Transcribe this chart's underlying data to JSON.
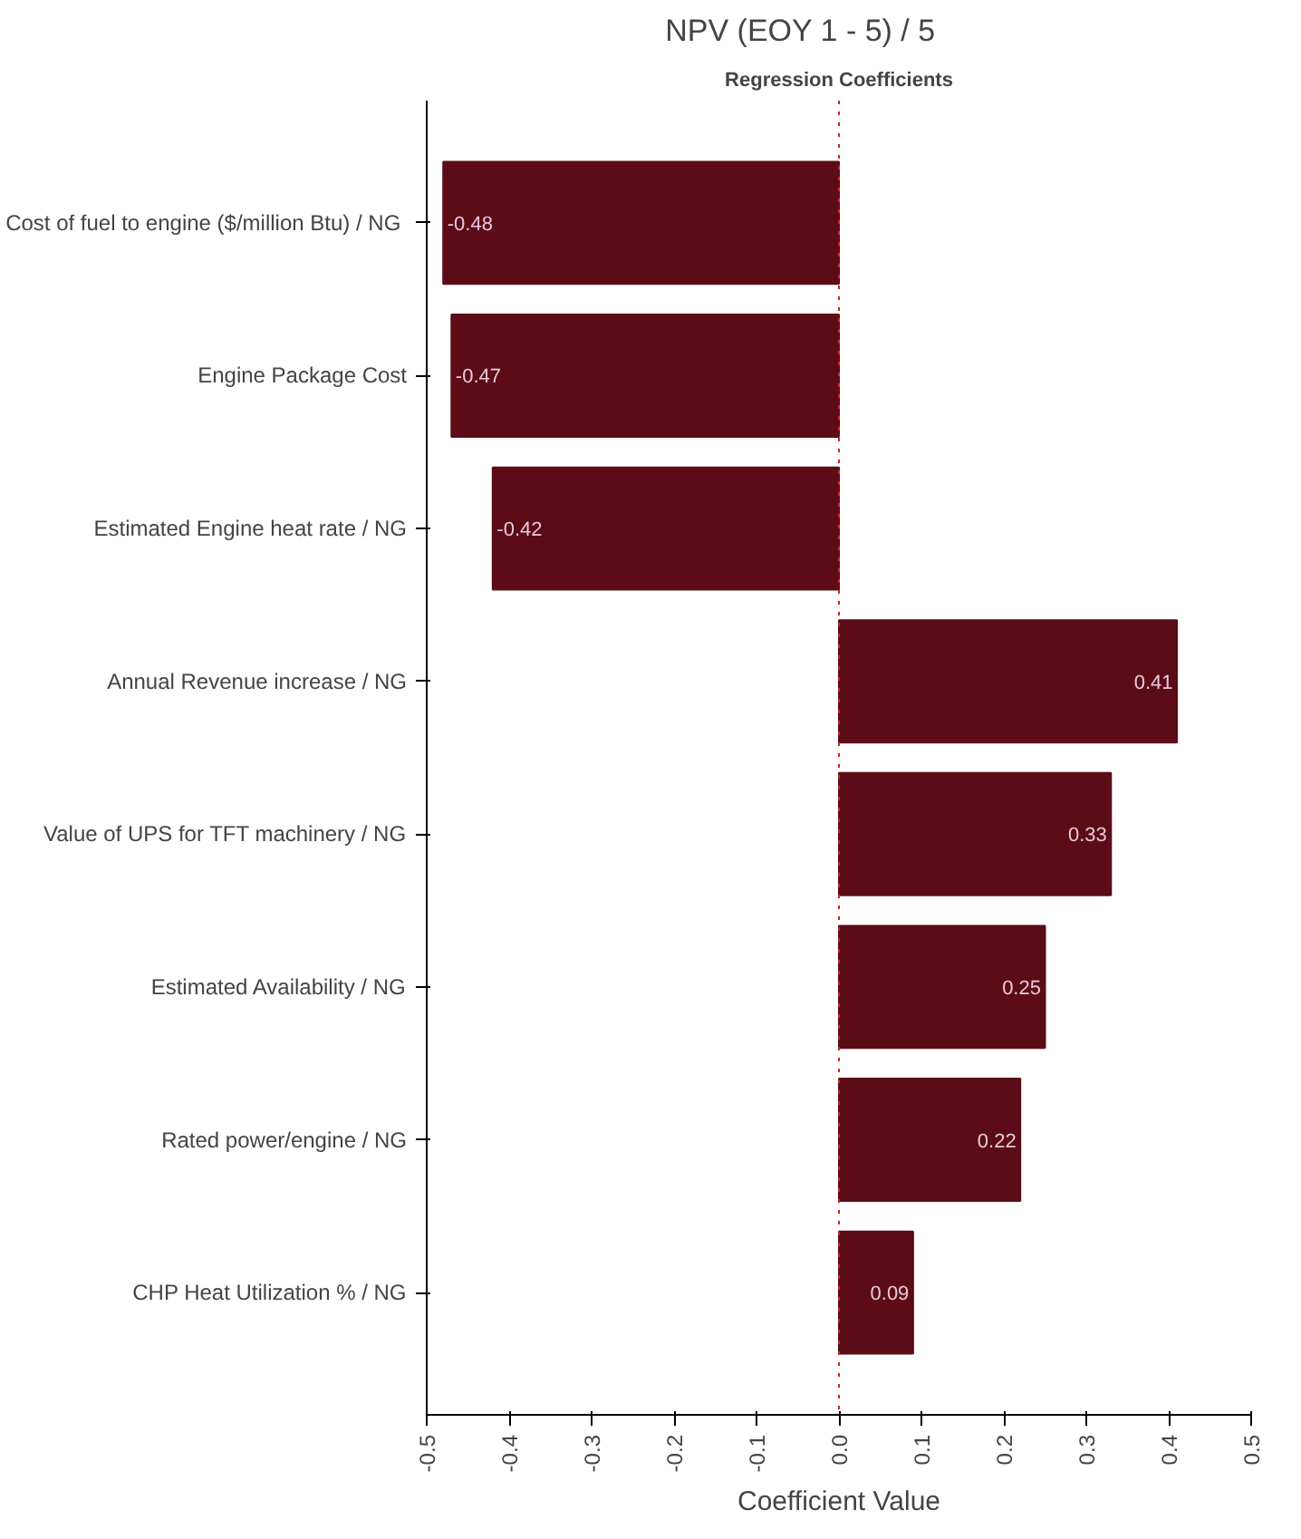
{
  "chart_data": {
    "type": "bar",
    "orientation": "horizontal",
    "title": "NPV (EOY 1 - 5) /          5",
    "subtitle": "Regression Coefficients",
    "xlabel": "Coefficient Value",
    "categories": [
      "Cost of  fuel to engine ($/million Btu) / NG",
      "Engine Package Cost",
      "Estimated Engine heat rate / NG",
      "Annual Revenue increase / NG",
      "Value of UPS for TFT machinery / NG",
      "Estimated Availability / NG",
      "Rated power/engine / NG",
      "CHP Heat Utilization % / NG"
    ],
    "values": [
      -0.48,
      -0.47,
      -0.42,
      0.41,
      0.33,
      0.25,
      0.22,
      0.09
    ],
    "color": "#5c0c16",
    "data_labels": true,
    "xlim": [
      -0.5,
      0.5
    ],
    "xticks": [
      -0.5,
      -0.4,
      -0.3,
      -0.2,
      -0.1,
      {
        "value": 0,
        "label": "0.0"
      },
      0.1,
      0.2,
      0.3,
      0.4,
      0.5
    ],
    "ref_lines": [
      {
        "axis": "x",
        "value": 0,
        "color": "#cc2222",
        "line_style": "dotted"
      }
    ],
    "grid": false
  }
}
